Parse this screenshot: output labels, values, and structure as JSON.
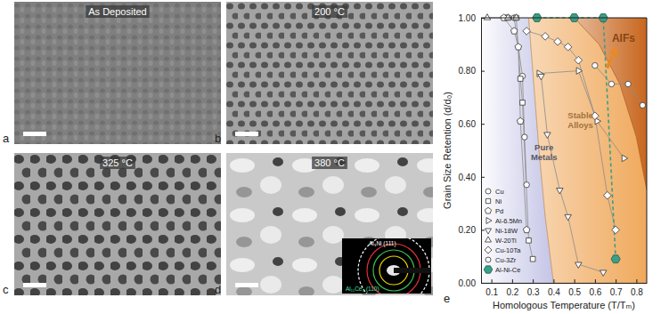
{
  "panels": [
    {
      "letter": "a",
      "label": "As Deposited"
    },
    {
      "letter": "b",
      "label": "200 °C"
    },
    {
      "letter": "c",
      "label": "325 °C"
    },
    {
      "letter": "d",
      "label": "380 °C",
      "inset_labels": [
        "Al₃Ni (111)",
        "Al₁₁Ce₃ (110)"
      ]
    },
    {
      "letter": "e"
    }
  ],
  "chart_data": {
    "type": "line",
    "x_label": "Homologous Temperature (T/Tₘ)",
    "y_label": "Grain Size Retention (d/d₀)",
    "xlim": [
      0.05,
      0.85
    ],
    "ylim": [
      0,
      1
    ],
    "xticks": [
      0.1,
      0.2,
      0.3,
      0.4,
      0.5,
      0.6,
      0.7,
      0.8
    ],
    "yticks": [
      {
        "value": 0,
        "label": "0.00"
      },
      {
        "value": 0.2,
        "label": "0.20"
      },
      {
        "value": 0.4,
        "label": "0.40"
      },
      {
        "value": 0.6,
        "label": "0.60"
      },
      {
        "value": 0.8,
        "label": "0.80"
      },
      {
        "value": 1,
        "label": "1.00"
      }
    ],
    "grid": false,
    "legend": "lower left",
    "regions": [
      {
        "label": [
          "Pure",
          "Metals"
        ],
        "color": "#c4c4e6",
        "x": [
          0.05,
          0.28,
          0.3,
          0.33,
          0.36,
          0.4,
          0.05
        ],
        "y": [
          1,
          1,
          0.8,
          0.5,
          0.25,
          0,
          0
        ]
      },
      {
        "label": [
          "Stable",
          "Alloys"
        ],
        "color": "#f0a95c",
        "x": [
          0.28,
          0.85,
          0.85,
          0.4,
          0.36,
          0.33,
          0.3
        ],
        "y": [
          1,
          1,
          0,
          0,
          0.25,
          0.5,
          0.8
        ]
      },
      {
        "label": [
          "AIFs"
        ],
        "color": "#c8661e",
        "x": [
          0.5,
          0.85,
          0.85,
          0.8,
          0.72,
          0.62
        ],
        "y": [
          1,
          1,
          0.35,
          0.55,
          0.75,
          0.9
        ]
      }
    ],
    "series": [
      {
        "name": "Cu",
        "marker": "circle",
        "color": "#ffffff",
        "line_style": "solid",
        "x": [
          0.17,
          0.21,
          0.25,
          0.26,
          0.27
        ],
        "values": [
          1.0,
          1.0,
          0.78,
          0.55,
          0.37
        ]
      },
      {
        "name": "Ni",
        "marker": "square",
        "color": "#ffffff",
        "line_style": "solid",
        "x": [
          0.18,
          0.22,
          0.24,
          0.25,
          0.28,
          0.3
        ],
        "values": [
          1.0,
          1.0,
          0.77,
          0.68,
          0.16,
          0.09
        ]
      },
      {
        "name": "Pd",
        "marker": "pentagon",
        "color": "#ffffff",
        "line_style": "solid",
        "x": [
          0.16,
          0.21,
          0.23,
          0.24,
          0.27
        ],
        "values": [
          1.0,
          0.95,
          0.89,
          0.61,
          0.2
        ]
      },
      {
        "name": "Al-6.5Mn",
        "marker": "triangle-right",
        "color": "#ffffff",
        "line_style": "solid",
        "x": [
          0.33,
          0.52,
          0.61,
          0.74
        ],
        "values": [
          0.79,
          0.8,
          0.61,
          0.47
        ]
      },
      {
        "name": "Ni-18W",
        "marker": "triangle-down",
        "color": "#ffffff",
        "line_style": "solid",
        "x": [
          0.34,
          0.37,
          0.43,
          0.47,
          0.52,
          0.64
        ],
        "values": [
          0.78,
          0.56,
          0.35,
          0.25,
          0.07,
          0.04
        ]
      },
      {
        "name": "W-20Ti",
        "marker": "triangle-up",
        "color": "#ffffff",
        "line_style": "solid",
        "x": [
          0.08,
          0.18,
          0.22
        ],
        "values": [
          1.0,
          1.0,
          1.0
        ]
      },
      {
        "name": "Cu-10Ta",
        "marker": "diamond",
        "color": "#ffffff",
        "line_style": "solid",
        "x": [
          0.27,
          0.36,
          0.42,
          0.47,
          0.52,
          0.6,
          0.66,
          0.7
        ],
        "values": [
          0.95,
          0.93,
          0.91,
          0.89,
          0.84,
          0.63,
          0.33,
          0.2
        ]
      },
      {
        "name": "Cu-3Zr",
        "marker": "circle",
        "color": "#ffffff",
        "line_style": "solid",
        "x": [
          0.6,
          0.68,
          0.76,
          0.83
        ],
        "values": [
          0.82,
          0.75,
          0.75,
          0.67
        ]
      },
      {
        "name": "Al-Ni-Ce",
        "marker": "hexagon",
        "color": "#3a9f86",
        "line_style": "dashed",
        "x": [
          0.32,
          0.5,
          0.64,
          0.7
        ],
        "values": [
          1.0,
          1.0,
          1.0,
          0.09
        ]
      }
    ]
  }
}
